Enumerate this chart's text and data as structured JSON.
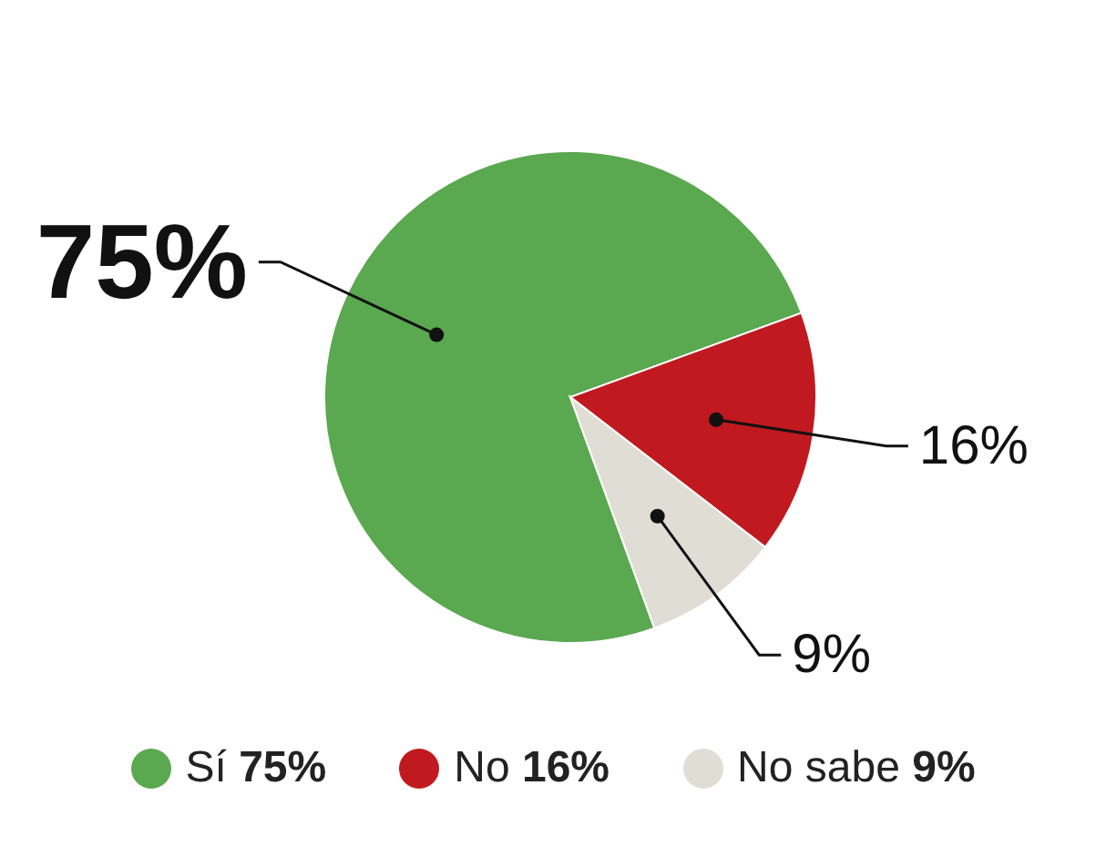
{
  "chart_data": {
    "type": "pie",
    "categories": [
      "Sí",
      "No",
      "No sabe"
    ],
    "values": [
      75,
      16,
      9
    ],
    "value_labels": [
      "75%",
      "16%",
      "9%"
    ],
    "colors": [
      "#5aa84f",
      "#c0191f",
      "#e0ddd5"
    ],
    "legend": "bottom"
  }
}
